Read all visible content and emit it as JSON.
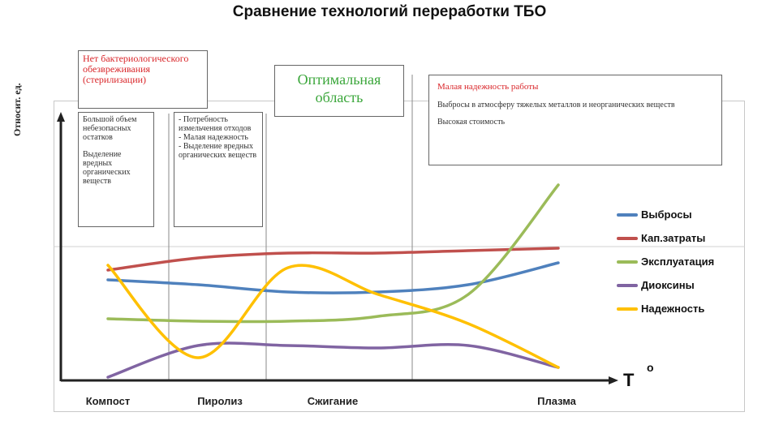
{
  "chart_data": {
    "type": "line",
    "title": "Сравнение технологий переработки ТБО",
    "ylabel": "Относит. ед.",
    "xlabel": "T",
    "xlabel_sup": "o",
    "categories": [
      "Компост",
      "Пиролиз",
      "Сжигание",
      "Плазма"
    ],
    "x_positions": [
      0,
      1,
      2,
      3,
      4,
      5
    ],
    "ylim": [
      0,
      10
    ],
    "grid": false,
    "legend_position": "right",
    "series": [
      {
        "name": "Выбросы",
        "color": "#4f81bd",
        "points": [
          [
            0,
            4.1
          ],
          [
            1,
            3.9
          ],
          [
            2,
            3.6
          ],
          [
            3,
            3.6
          ],
          [
            4,
            3.9
          ],
          [
            5,
            4.8
          ]
        ]
      },
      {
        "name": "Кап.затраты",
        "color": "#c0504d",
        "points": [
          [
            0,
            4.5
          ],
          [
            1,
            5.0
          ],
          [
            2,
            5.2
          ],
          [
            3,
            5.2
          ],
          [
            4,
            5.3
          ],
          [
            5,
            5.4
          ]
        ]
      },
      {
        "name": "Эксплуатация",
        "color": "#9bbb59",
        "points": [
          [
            0,
            2.5
          ],
          [
            1,
            2.4
          ],
          [
            2,
            2.4
          ],
          [
            3,
            2.6
          ],
          [
            4,
            3.5
          ],
          [
            5,
            8.0
          ]
        ]
      },
      {
        "name": "Диоксины",
        "color": "#8064a2",
        "points": [
          [
            0,
            0.1
          ],
          [
            1,
            1.4
          ],
          [
            2,
            1.4
          ],
          [
            3,
            1.3
          ],
          [
            4,
            1.4
          ],
          [
            5,
            0.5
          ]
        ]
      },
      {
        "name": "Надежность",
        "color": "#ffc000",
        "points": [
          [
            0,
            4.7
          ],
          [
            1,
            0.9
          ],
          [
            2,
            4.6
          ],
          [
            3,
            3.5
          ],
          [
            4,
            2.3
          ],
          [
            5,
            0.5
          ]
        ]
      }
    ]
  },
  "boxes": {
    "top_left": {
      "red": "Нет бактериологического обезвреживания (стерилизации)"
    },
    "compost": {
      "text": "Большой объем небезопасных остатков",
      "text2": "Выделение вредных органических веществ"
    },
    "pyrolysis": {
      "text": "- Потребность измельчения отходов",
      "text2": "- Малая надежность",
      "text3": "- Выделение вредных органических веществ"
    },
    "optimal": {
      "text": "Оптимальная область"
    },
    "plasma": {
      "red": "Малая надежность работы",
      "text": "Выбросы в атмосферу тяжелых металлов и неорганических веществ",
      "text2": "Высокая стоимость"
    }
  }
}
